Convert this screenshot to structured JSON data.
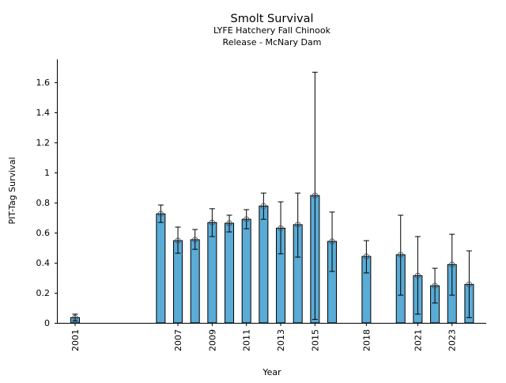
{
  "chart_data": {
    "type": "bar",
    "title": "Smolt Survival",
    "subtitle_lines": [
      "LYFE Hatchery Fall Chinook",
      "Release - McNary Dam"
    ],
    "xlabel": "Year",
    "ylabel": "PIT-Tag Survival",
    "ylim": [
      0,
      1.75
    ],
    "yticks": [
      0,
      0.2,
      0.4,
      0.6,
      0.8,
      1,
      1.2,
      1.4,
      1.6
    ],
    "ytick_labels": [
      "0",
      "0.2",
      "0.4",
      "0.6",
      "0.8",
      "1",
      "1.2",
      "1.4",
      "1.6"
    ],
    "xticks": [
      2001,
      2007,
      2009,
      2011,
      2013,
      2015,
      2018,
      2021,
      2023
    ],
    "xtick_labels": [
      "2001",
      "2007",
      "2009",
      "2011",
      "2013",
      "2015",
      "2018",
      "2021",
      "2023"
    ],
    "xlim": [
      1999.9,
      2025
    ],
    "bar_color": "#5aabd6",
    "grid": false,
    "x": [
      2001,
      2006,
      2007,
      2008,
      2009,
      2010,
      2011,
      2012,
      2013,
      2014,
      2015,
      2016,
      2018,
      2020,
      2021,
      2022,
      2023,
      2024
    ],
    "values": [
      0.035,
      0.725,
      0.547,
      0.553,
      0.667,
      0.663,
      0.689,
      0.777,
      0.63,
      0.653,
      0.847,
      0.542,
      0.442,
      0.453,
      0.314,
      0.247,
      0.388,
      0.256
    ],
    "upper": [
      0.058,
      0.784,
      0.637,
      0.621,
      0.759,
      0.716,
      0.753,
      0.863,
      0.805,
      0.863,
      1.667,
      0.737,
      0.547,
      0.716,
      0.574,
      0.363,
      0.589,
      0.479
    ],
    "lower": [
      0.012,
      0.668,
      0.463,
      0.489,
      0.574,
      0.605,
      0.626,
      0.689,
      0.459,
      0.437,
      0.023,
      0.342,
      0.332,
      0.184,
      0.058,
      0.132,
      0.184,
      0.035
    ]
  }
}
